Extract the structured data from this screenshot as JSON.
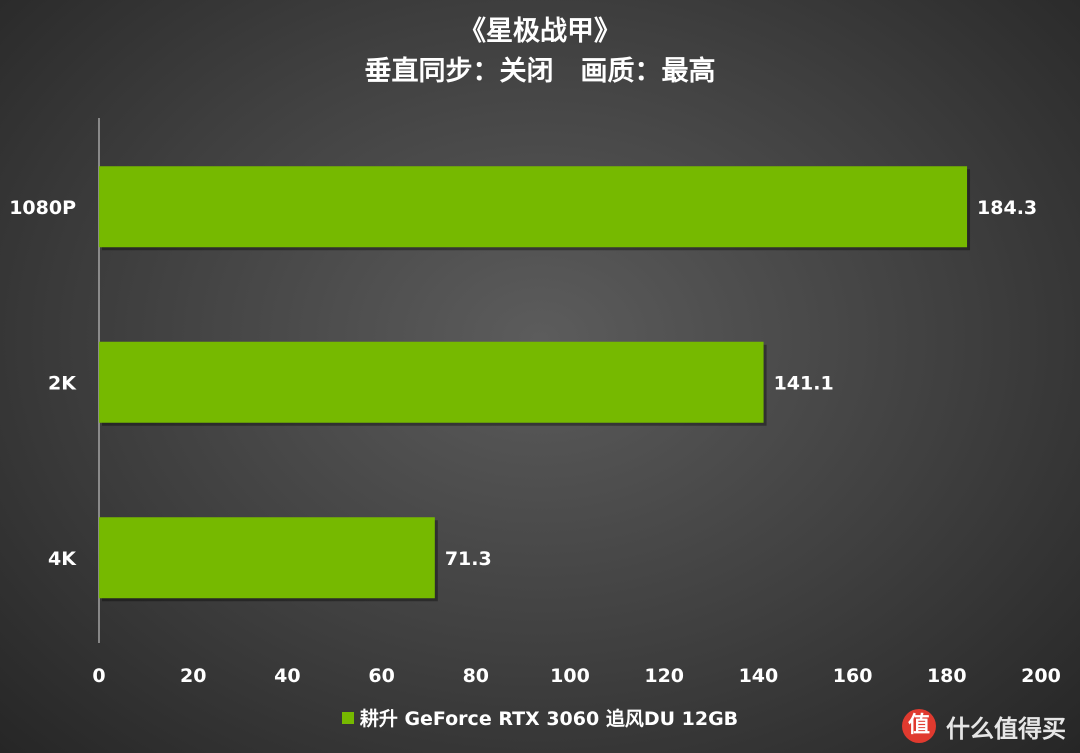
{
  "header": {
    "title": "《星极战甲》",
    "subtitle": "垂直同步：关闭　画质：最高"
  },
  "legend": {
    "label": "耕升 GeForce RTX 3060 追风DU 12GB",
    "color": "#76b900"
  },
  "watermark": {
    "icon": "value-logo-icon",
    "text": "什么值得买"
  },
  "chart_data": {
    "type": "bar",
    "orientation": "horizontal",
    "title": "《星极战甲》",
    "subtitle": "垂直同步：关闭　画质：最高",
    "categories": [
      "1080P",
      "2K",
      "4K"
    ],
    "series": [
      {
        "name": "耕升 GeForce RTX 3060 追风DU 12GB",
        "values": [
          184.3,
          141.1,
          71.3
        ],
        "color": "#76b900"
      }
    ],
    "xlim": [
      0,
      200
    ],
    "xticks": [
      0,
      20,
      40,
      60,
      80,
      100,
      120,
      140,
      160,
      180,
      200
    ],
    "grid": false,
    "legend_position": "bottom"
  }
}
